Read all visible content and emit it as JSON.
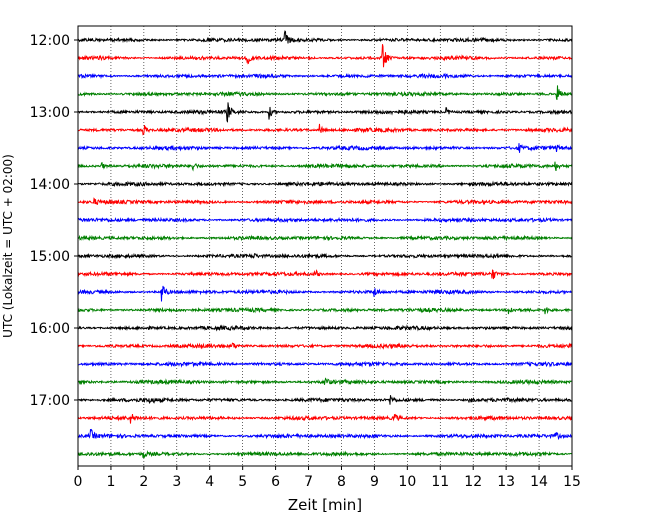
{
  "chart_data": {
    "type": "line",
    "title": "",
    "xlabel": "Zeit  [min]",
    "ylabel": "UTC (Lokalzeit = UTC + 02:00)",
    "xlim": [
      0,
      15
    ],
    "x_ticks": [
      0,
      1,
      2,
      3,
      4,
      5,
      6,
      7,
      8,
      9,
      10,
      11,
      12,
      13,
      14,
      15
    ],
    "x_grid": "dotted vertical lines at each minute",
    "y_tick_labels": [
      "12:00",
      "13:00",
      "14:00",
      "15:00",
      "16:00",
      "17:00"
    ],
    "row_interval_min": 15,
    "color_cycle": [
      "#000000",
      "#ff0000",
      "#0000ff",
      "#008000"
    ],
    "traces": [
      {
        "start": "12:00",
        "color": "#000000",
        "events": [
          {
            "t": 6.3,
            "amp": 0.4
          }
        ]
      },
      {
        "start": "12:15",
        "color": "#ff0000",
        "events": [
          {
            "t": 5.15,
            "amp": 0.35
          },
          {
            "t": 9.25,
            "amp": 0.85
          }
        ]
      },
      {
        "start": "12:30",
        "color": "#0000ff",
        "events": [
          {
            "t": 10.4,
            "amp": 0.12
          }
        ]
      },
      {
        "start": "12:45",
        "color": "#008000",
        "events": [
          {
            "t": 14.55,
            "amp": 0.5
          }
        ]
      },
      {
        "start": "13:00",
        "color": "#000000",
        "events": [
          {
            "t": 4.55,
            "amp": 0.5
          },
          {
            "t": 5.8,
            "amp": 0.4
          },
          {
            "t": 11.2,
            "amp": 0.2
          }
        ]
      },
      {
        "start": "13:15",
        "color": "#ff0000",
        "events": [
          {
            "t": 2.0,
            "amp": 0.3
          },
          {
            "t": 7.35,
            "amp": 0.3
          }
        ]
      },
      {
        "start": "13:30",
        "color": "#0000ff",
        "events": [
          {
            "t": 13.4,
            "amp": 0.2
          },
          {
            "t": 14.5,
            "amp": 0.2
          }
        ]
      },
      {
        "start": "13:45",
        "color": "#008000",
        "events": [
          {
            "t": 0.7,
            "amp": 0.25
          },
          {
            "t": 3.5,
            "amp": 0.25
          },
          {
            "t": 14.5,
            "amp": 0.25
          }
        ]
      },
      {
        "start": "14:00",
        "color": "#000000",
        "events": []
      },
      {
        "start": "14:15",
        "color": "#ff0000",
        "events": [
          {
            "t": 0.5,
            "amp": 0.15
          }
        ]
      },
      {
        "start": "14:30",
        "color": "#0000ff",
        "events": []
      },
      {
        "start": "14:45",
        "color": "#008000",
        "events": []
      },
      {
        "start": "15:00",
        "color": "#000000",
        "events": [
          {
            "t": 5.3,
            "amp": 0.2
          }
        ]
      },
      {
        "start": "15:15",
        "color": "#ff0000",
        "events": [
          {
            "t": 7.2,
            "amp": 0.25
          },
          {
            "t": 12.6,
            "amp": 0.3
          }
        ]
      },
      {
        "start": "15:30",
        "color": "#0000ff",
        "events": [
          {
            "t": 2.55,
            "amp": 0.7
          },
          {
            "t": 9.0,
            "amp": 0.3
          }
        ]
      },
      {
        "start": "15:45",
        "color": "#008000",
        "events": [
          {
            "t": 13.1,
            "amp": 0.25
          },
          {
            "t": 14.2,
            "amp": 0.25
          }
        ]
      },
      {
        "start": "16:00",
        "color": "#000000",
        "events": []
      },
      {
        "start": "16:15",
        "color": "#ff0000",
        "events": [
          {
            "t": 4.7,
            "amp": 0.15
          }
        ]
      },
      {
        "start": "16:30",
        "color": "#0000ff",
        "events": []
      },
      {
        "start": "16:45",
        "color": "#008000",
        "events": [
          {
            "t": 7.5,
            "amp": 0.3
          }
        ]
      },
      {
        "start": "17:00",
        "color": "#000000",
        "events": [
          {
            "t": 2.2,
            "amp": 0.2
          },
          {
            "t": 9.5,
            "amp": 0.25
          },
          {
            "t": 11.9,
            "amp": 0.2
          }
        ]
      },
      {
        "start": "17:15",
        "color": "#ff0000",
        "events": [
          {
            "t": 1.6,
            "amp": 0.25
          },
          {
            "t": 9.6,
            "amp": 0.3
          }
        ]
      },
      {
        "start": "17:30",
        "color": "#0000ff",
        "events": [
          {
            "t": 0.4,
            "amp": 0.3
          },
          {
            "t": 14.5,
            "amp": 0.25
          }
        ]
      },
      {
        "start": "17:45",
        "color": "#008000",
        "events": [
          {
            "t": 2.0,
            "amp": 0.2
          }
        ]
      }
    ]
  }
}
